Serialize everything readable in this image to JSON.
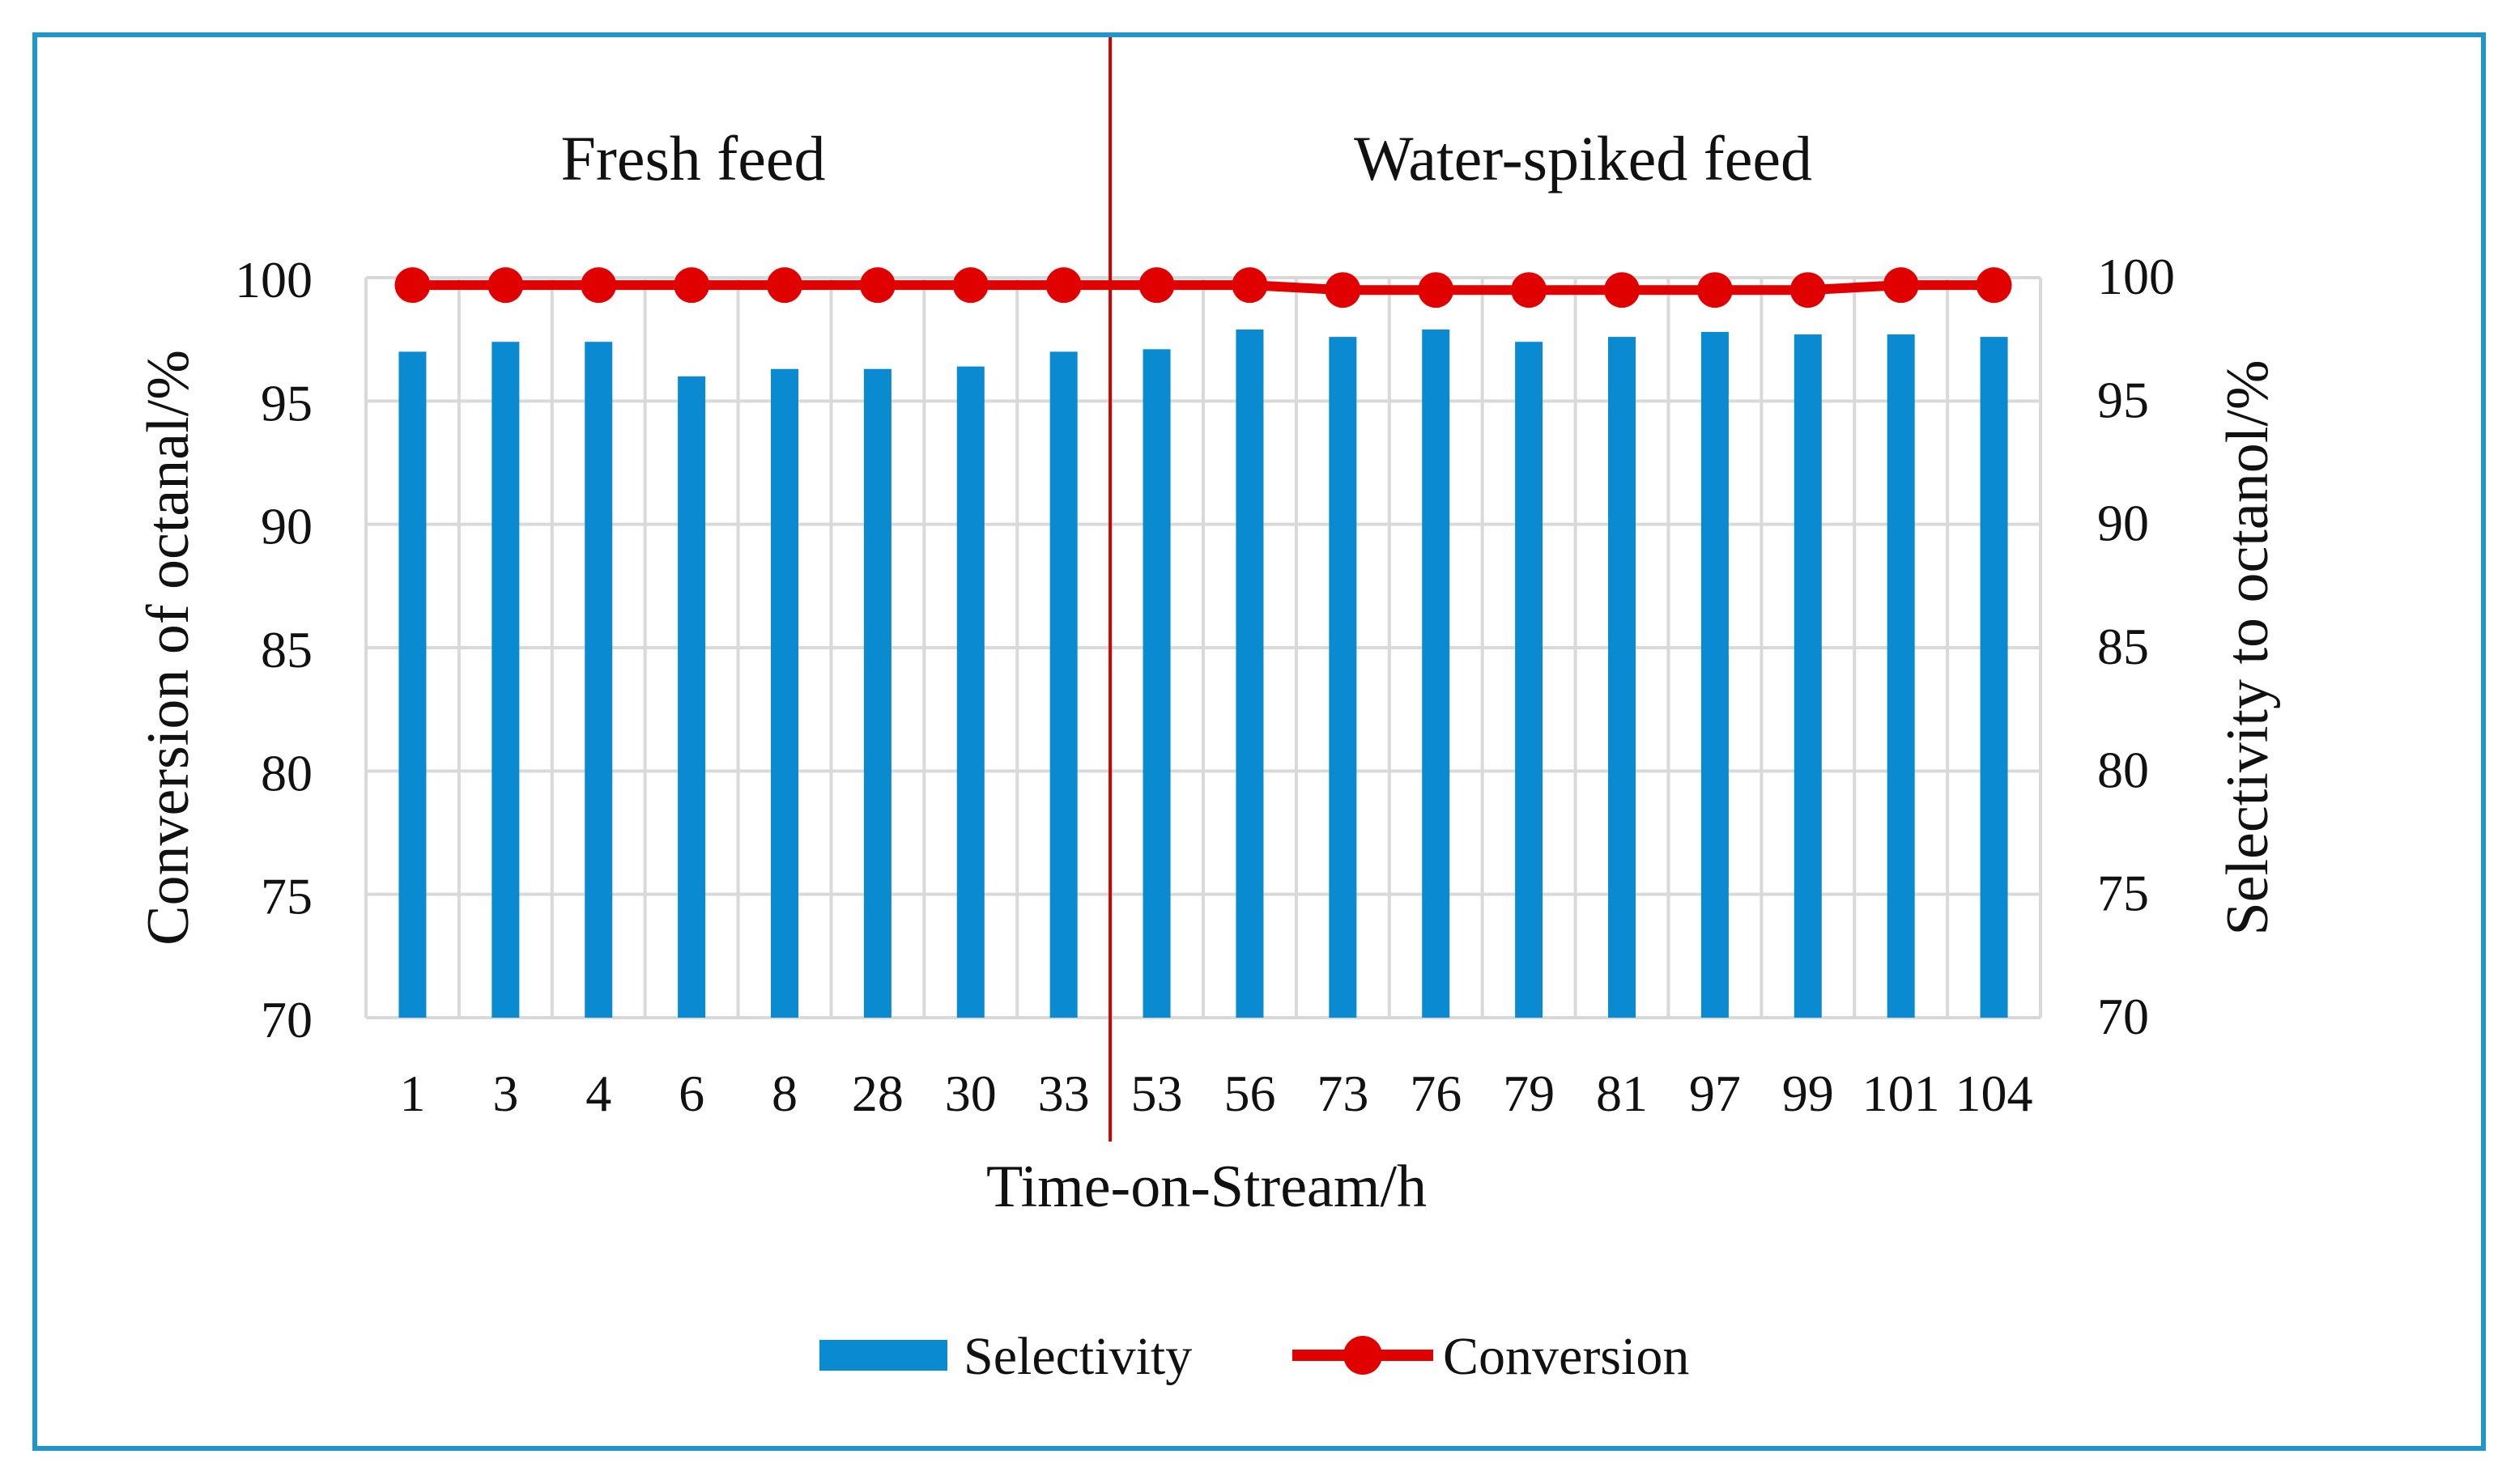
{
  "chart_data": {
    "type": "bar+line",
    "categories": [
      "1",
      "3",
      "4",
      "6",
      "8",
      "28",
      "30",
      "33",
      "53",
      "56",
      "73",
      "76",
      "79",
      "81",
      "97",
      "99",
      "101",
      "104"
    ],
    "series": [
      {
        "name": "Selectivity",
        "type": "bar",
        "axis": "right",
        "color": "#0a8ad0",
        "values": [
          97.0,
          97.4,
          97.4,
          96.0,
          96.3,
          96.3,
          96.4,
          97.0,
          97.1,
          97.9,
          97.6,
          97.9,
          97.4,
          97.6,
          97.8,
          97.7,
          97.7,
          97.6
        ]
      },
      {
        "name": "Conversion",
        "type": "line",
        "axis": "left",
        "color": "#e00000",
        "values": [
          99.7,
          99.7,
          99.7,
          99.7,
          99.7,
          99.7,
          99.7,
          99.7,
          99.7,
          99.7,
          99.5,
          99.5,
          99.5,
          99.5,
          99.5,
          99.5,
          99.7,
          99.7
        ]
      }
    ],
    "xlabel": "Time-on-Stream/h",
    "ylabel_left": "Conversion of octanal/%",
    "ylabel_right": "Selectivity to octanol/%",
    "ylim_left": [
      70,
      100
    ],
    "ylim_right": [
      70,
      100
    ],
    "yticks": [
      "70",
      "75",
      "80",
      "85",
      "90",
      "95",
      "100"
    ],
    "grid": true,
    "legend_position": "bottom",
    "annotations": {
      "left_region": "Fresh feed",
      "right_region": "Water-spiked feed",
      "divider_after_category": "33",
      "divider_color": "#d00000"
    }
  }
}
